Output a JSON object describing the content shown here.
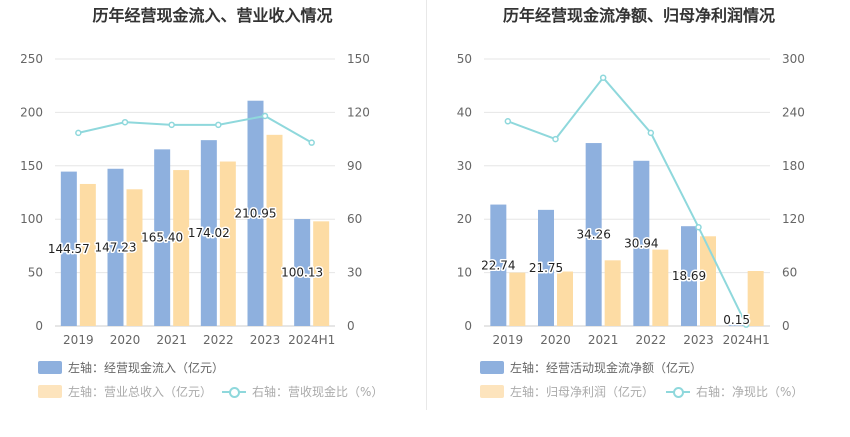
{
  "left": {
    "title": "历年经营现金流入、营业收入情况",
    "legend": [
      {
        "label": "左轴：经营现金流入（亿元）",
        "color": "#8eb0de"
      },
      {
        "label": "左轴：营业总收入（亿元）",
        "color": "#fddca4"
      },
      {
        "label": "右轴：营收现金比（%）",
        "color": "#8fd8dc"
      }
    ]
  },
  "right": {
    "title": "历年经营现金流净额、归母净利润情况",
    "legend": [
      {
        "label": "左轴：经营活动现金流净额（亿元）",
        "color": "#8eb0de"
      },
      {
        "label": "左轴：归母净利润（亿元）",
        "color": "#fddca4"
      },
      {
        "label": "右轴：净现比（%）",
        "color": "#8fd8dc"
      }
    ]
  },
  "chart_data": [
    {
      "type": "bar",
      "title": "历年经营现金流入、营业收入情况",
      "categories": [
        "2019",
        "2020",
        "2021",
        "2022",
        "2023",
        "2024H1"
      ],
      "ylim": [
        0,
        250
      ],
      "yticks": [
        0,
        50,
        100,
        150,
        200,
        250
      ],
      "y2lim": [
        0,
        150
      ],
      "y2ticks": [
        0,
        30,
        60,
        90,
        120,
        150
      ],
      "series": [
        {
          "name": "左轴：经营现金流入（亿元）",
          "axis": "left",
          "type": "bar",
          "values": [
            144.57,
            147.23,
            165.4,
            174.02,
            210.95,
            100.13
          ],
          "labels": [
            "144.57",
            "147.23",
            "165.40",
            "174.02",
            "210.95",
            "100.13"
          ],
          "color": "#8eb0de"
        },
        {
          "name": "左轴：营业总收入（亿元）",
          "axis": "left",
          "type": "bar",
          "values": [
            133,
            128,
            146,
            154,
            179,
            98
          ],
          "color": "#fddca4"
        },
        {
          "name": "右轴：营收现金比（%）",
          "axis": "right",
          "type": "line",
          "values": [
            108.5,
            114.5,
            113,
            113,
            118,
            103
          ],
          "color": "#8fd8dc"
        }
      ]
    },
    {
      "type": "bar",
      "title": "历年经营现金流净额、归母净利润情况",
      "categories": [
        "2019",
        "2020",
        "2021",
        "2022",
        "2023",
        "2024H1"
      ],
      "ylim": [
        0,
        50
      ],
      "yticks": [
        0,
        10,
        20,
        30,
        40,
        50
      ],
      "y2lim": [
        0,
        300
      ],
      "y2ticks": [
        0,
        60,
        120,
        180,
        240,
        300
      ],
      "series": [
        {
          "name": "左轴：经营活动现金流净额（亿元）",
          "axis": "left",
          "type": "bar",
          "values": [
            22.74,
            21.75,
            34.26,
            30.94,
            18.69,
            0.15
          ],
          "labels": [
            "22.74",
            "21.75",
            "34.26",
            "30.94",
            "18.69",
            "0.15"
          ],
          "color": "#8eb0de"
        },
        {
          "name": "左轴：归母净利润（亿元）",
          "axis": "left",
          "type": "bar",
          "values": [
            10,
            10.2,
            12.3,
            14.3,
            16.8,
            10.3
          ],
          "color": "#fddca4"
        },
        {
          "name": "右轴：净现比（%）",
          "axis": "right",
          "type": "line",
          "values": [
            230,
            210,
            279,
            217,
            111,
            1.5
          ],
          "color": "#8fd8dc"
        }
      ]
    }
  ]
}
